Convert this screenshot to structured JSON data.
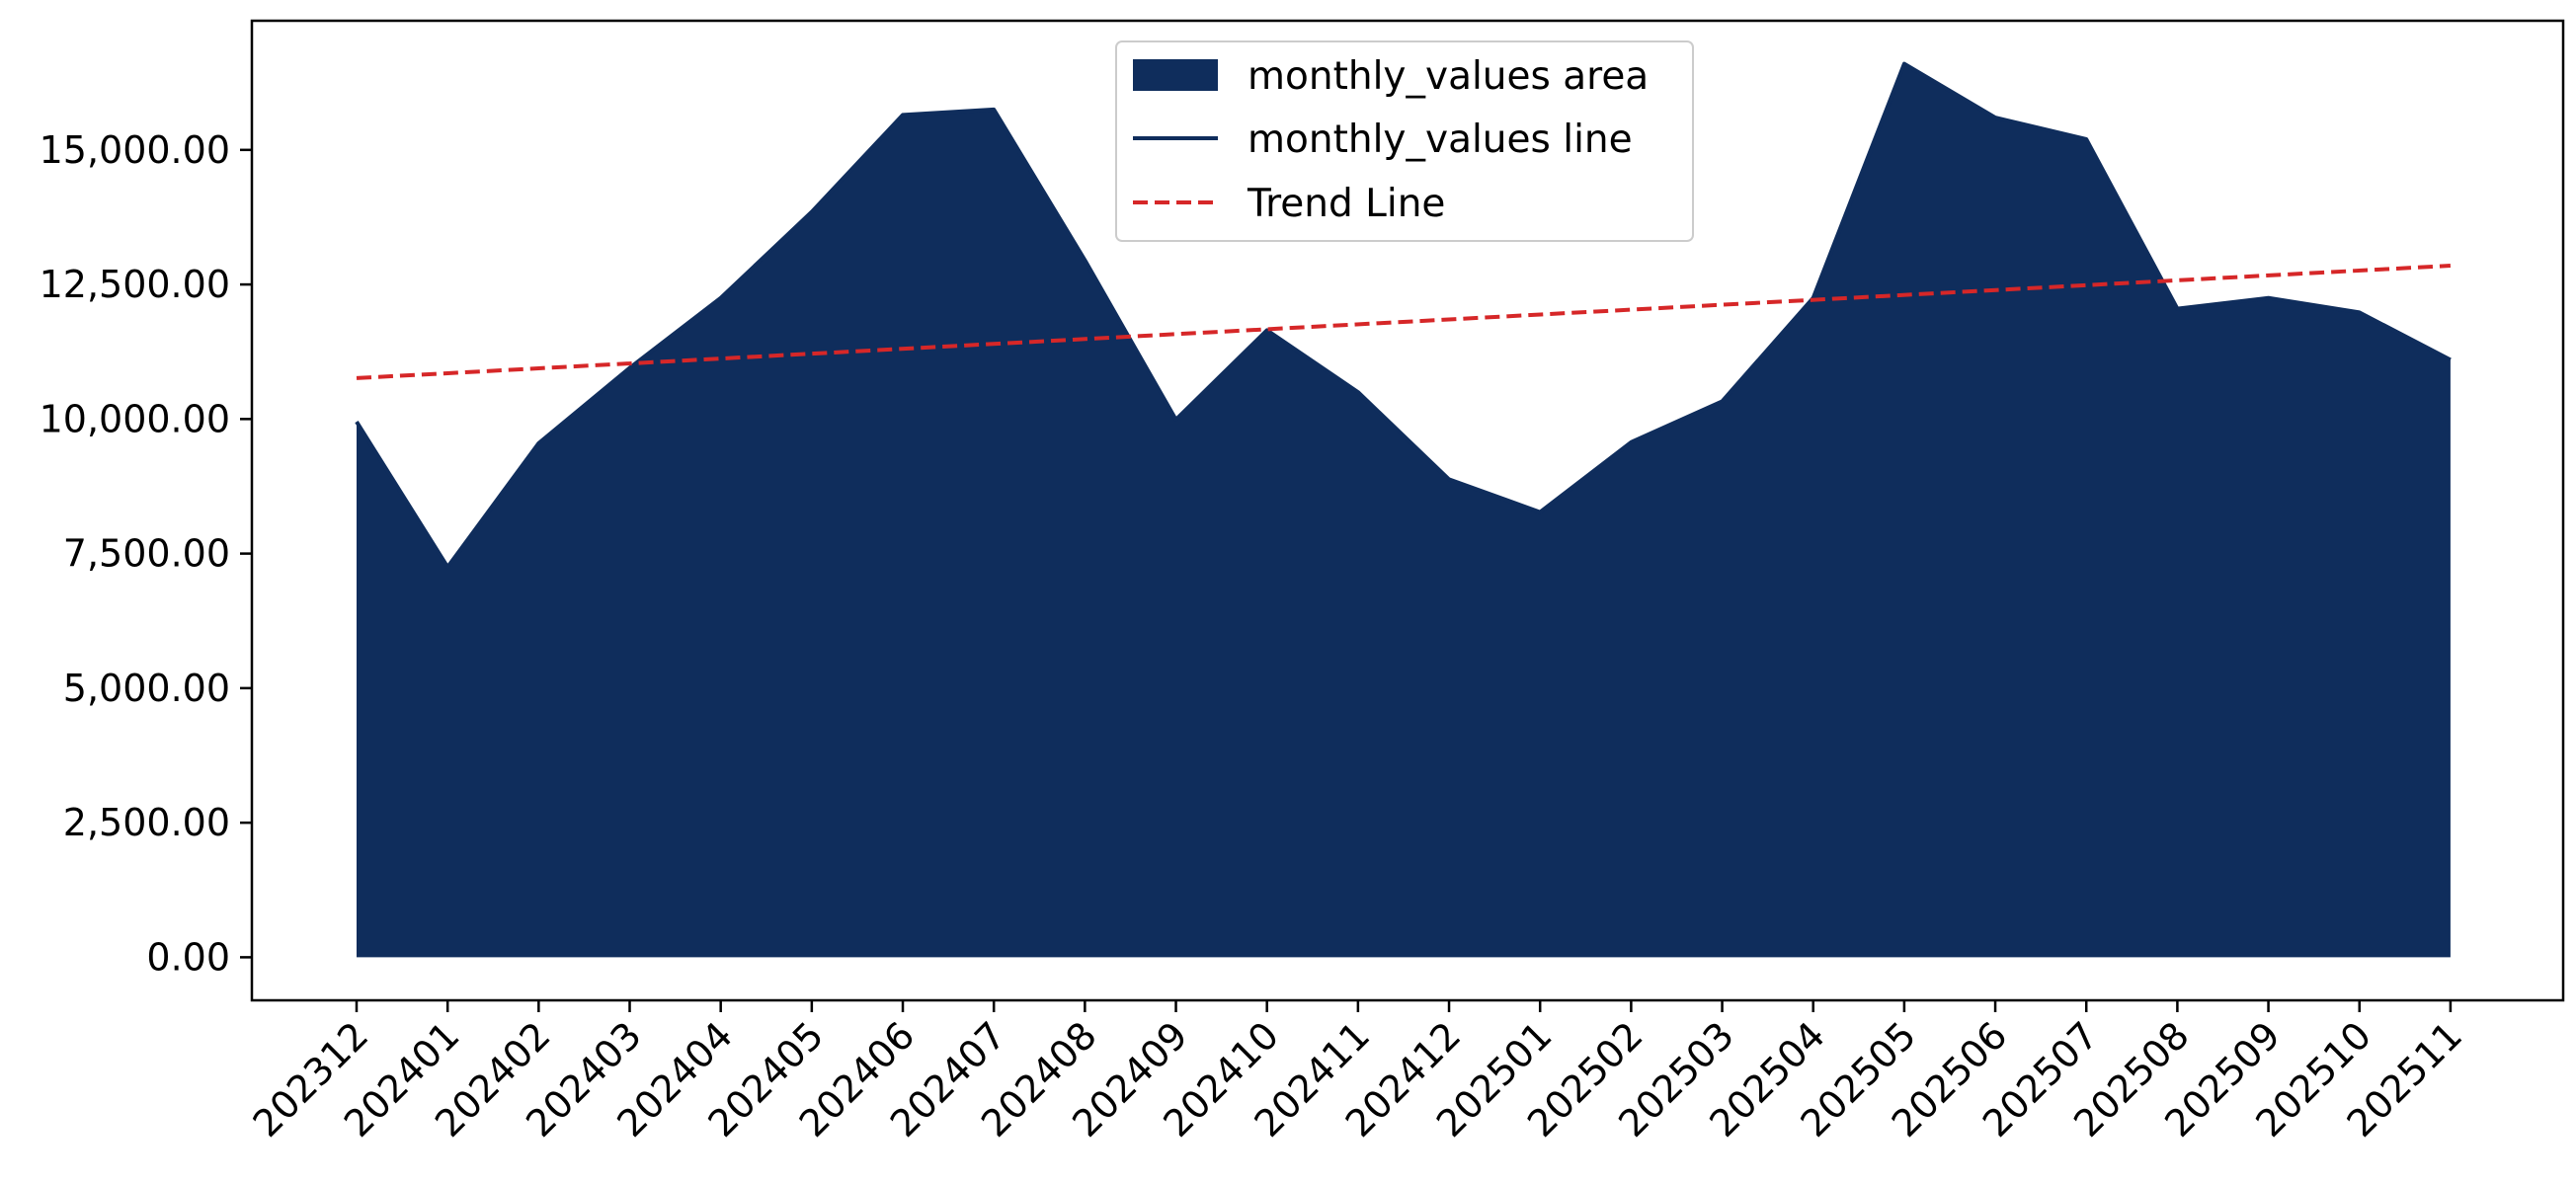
{
  "chart_data": {
    "type": "area",
    "title": "",
    "xlabel": "",
    "ylabel": "",
    "categories": [
      "202312",
      "202401",
      "202402",
      "202403",
      "202404",
      "202405",
      "202406",
      "202407",
      "202408",
      "202409",
      "202410",
      "202411",
      "202412",
      "202501",
      "202502",
      "202503",
      "202504",
      "202505",
      "202506",
      "202507",
      "202508",
      "202509",
      "202510",
      "202511"
    ],
    "series": [
      {
        "name": "monthly_values area",
        "kind": "area",
        "color": "#0f2d5c",
        "values": [
          9950,
          7250,
          9550,
          10950,
          12250,
          13850,
          15650,
          15750,
          12950,
          9990,
          11650,
          10500,
          8880,
          8270,
          9570,
          10330,
          12250,
          16600,
          15600,
          15200,
          12050,
          12250,
          11980,
          11100
        ]
      },
      {
        "name": "monthly_values line",
        "kind": "line",
        "color": "#0f2d5c",
        "values": [
          9950,
          7250,
          9550,
          10950,
          12250,
          13850,
          15650,
          15750,
          12950,
          9990,
          11650,
          10500,
          8880,
          8270,
          9570,
          10330,
          12250,
          16600,
          15600,
          15200,
          12050,
          12250,
          11980,
          11100
        ]
      },
      {
        "name": "Trend Line",
        "kind": "line",
        "style": "dashed",
        "color": "#d62728",
        "start": 10760,
        "end": 12850
      }
    ],
    "ylim": [
      -800,
      17400
    ],
    "yticks": [
      0,
      2500,
      5000,
      7500,
      10000,
      12500,
      15000
    ],
    "ytick_labels": [
      "0.00",
      "2,500.00",
      "5,000.00",
      "7,500.00",
      "10,000.00",
      "12,500.00",
      "15,000.00"
    ],
    "grid": false,
    "legend_position": "upper center"
  }
}
